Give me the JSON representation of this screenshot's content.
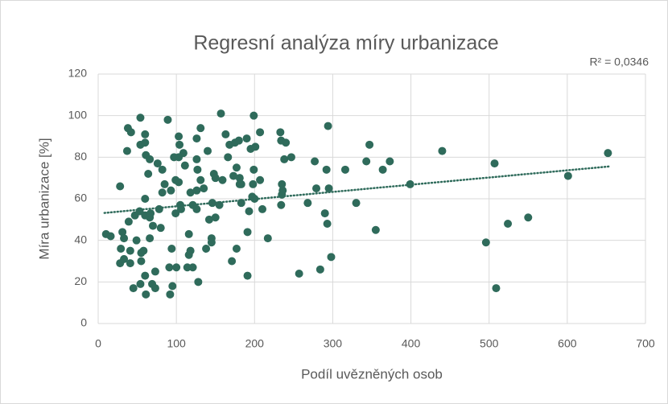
{
  "chart_data": {
    "type": "scatter",
    "title": "Regresní analýza míry urbanizace",
    "xlabel": "Podíl uvězněných osob",
    "ylabel": "Míra urbanizace [%]",
    "annotation": "R² = 0,0346",
    "color": "#2f6b5b",
    "grid": true,
    "xlim": [
      0,
      700
    ],
    "xticks": [
      0,
      100,
      200,
      300,
      400,
      500,
      600,
      700
    ],
    "ylim": [
      0,
      120
    ],
    "yticks": [
      0,
      20,
      40,
      60,
      80,
      100,
      120
    ],
    "x": [
      10,
      16,
      28,
      31,
      29,
      28,
      33,
      33,
      37,
      38,
      42,
      39,
      41,
      41,
      45,
      47,
      49,
      54,
      54,
      53,
      55,
      55,
      54,
      60,
      60,
      61,
      60,
      60,
      58,
      60,
      61,
      64,
      66,
      66,
      67,
      66,
      70,
      69,
      73,
      73,
      76,
      78,
      80,
      82,
      82,
      85,
      89,
      91,
      92,
      93,
      94,
      95,
      97,
      99,
      99,
      100,
      103,
      104,
      103,
      103,
      105,
      106,
      109,
      111,
      114,
      116,
      116,
      118,
      118,
      121,
      121,
      126,
      126,
      127,
      126,
      126,
      128,
      131,
      131,
      135,
      138,
      140,
      142,
      145,
      145,
      146,
      148,
      150,
      150,
      155,
      157,
      159,
      163,
      166,
      168,
      171,
      173,
      175,
      177,
      177,
      181,
      181,
      183,
      183,
      180,
      190,
      191,
      191,
      193,
      195,
      197,
      198,
      199,
      199,
      200,
      201,
      207,
      207,
      210,
      217,
      233,
      234,
      234,
      235,
      235,
      236,
      238,
      240,
      247,
      257,
      268,
      277,
      279,
      284,
      290,
      292,
      293,
      294,
      295,
      298,
      316,
      330,
      343,
      347,
      355,
      364,
      373,
      399,
      440,
      496,
      507,
      509,
      524,
      550,
      601,
      652
    ],
    "values": [
      43,
      42,
      66,
      44,
      36,
      29,
      41,
      31,
      83,
      94,
      92,
      49,
      35,
      29,
      17,
      52,
      40,
      99,
      86,
      54,
      34,
      30,
      19,
      91,
      87,
      81,
      60,
      52,
      35,
      23,
      14,
      72,
      79,
      51,
      53,
      41,
      47,
      19,
      17,
      25,
      77,
      55,
      46,
      74,
      63,
      67,
      98,
      27,
      14,
      64,
      36,
      18,
      80,
      69,
      53,
      27,
      90,
      86,
      80,
      68,
      57,
      55,
      82,
      76,
      27,
      43,
      33,
      63,
      35,
      57,
      27,
      89,
      79,
      74,
      64,
      55,
      20,
      94,
      69,
      65,
      36,
      83,
      50,
      41,
      39,
      58,
      72,
      51,
      70,
      57,
      101,
      69,
      91,
      80,
      86,
      30,
      71,
      87,
      75,
      36,
      70,
      67,
      67,
      58,
      88,
      89,
      44,
      23,
      54,
      84,
      61,
      67,
      100,
      74,
      60,
      85,
      69,
      92,
      55,
      41,
      92,
      88,
      57,
      67,
      62,
      64,
      79,
      87,
      80,
      24,
      58,
      78,
      65,
      26,
      53,
      74,
      48,
      95,
      65,
      32,
      74,
      58,
      78,
      86,
      45,
      74,
      78,
      67,
      83,
      39,
      77,
      17,
      48,
      51,
      71,
      82
    ],
    "trendline": {
      "x": [
        8,
        655
      ],
      "values": [
        53.2,
        75.6
      ]
    }
  }
}
